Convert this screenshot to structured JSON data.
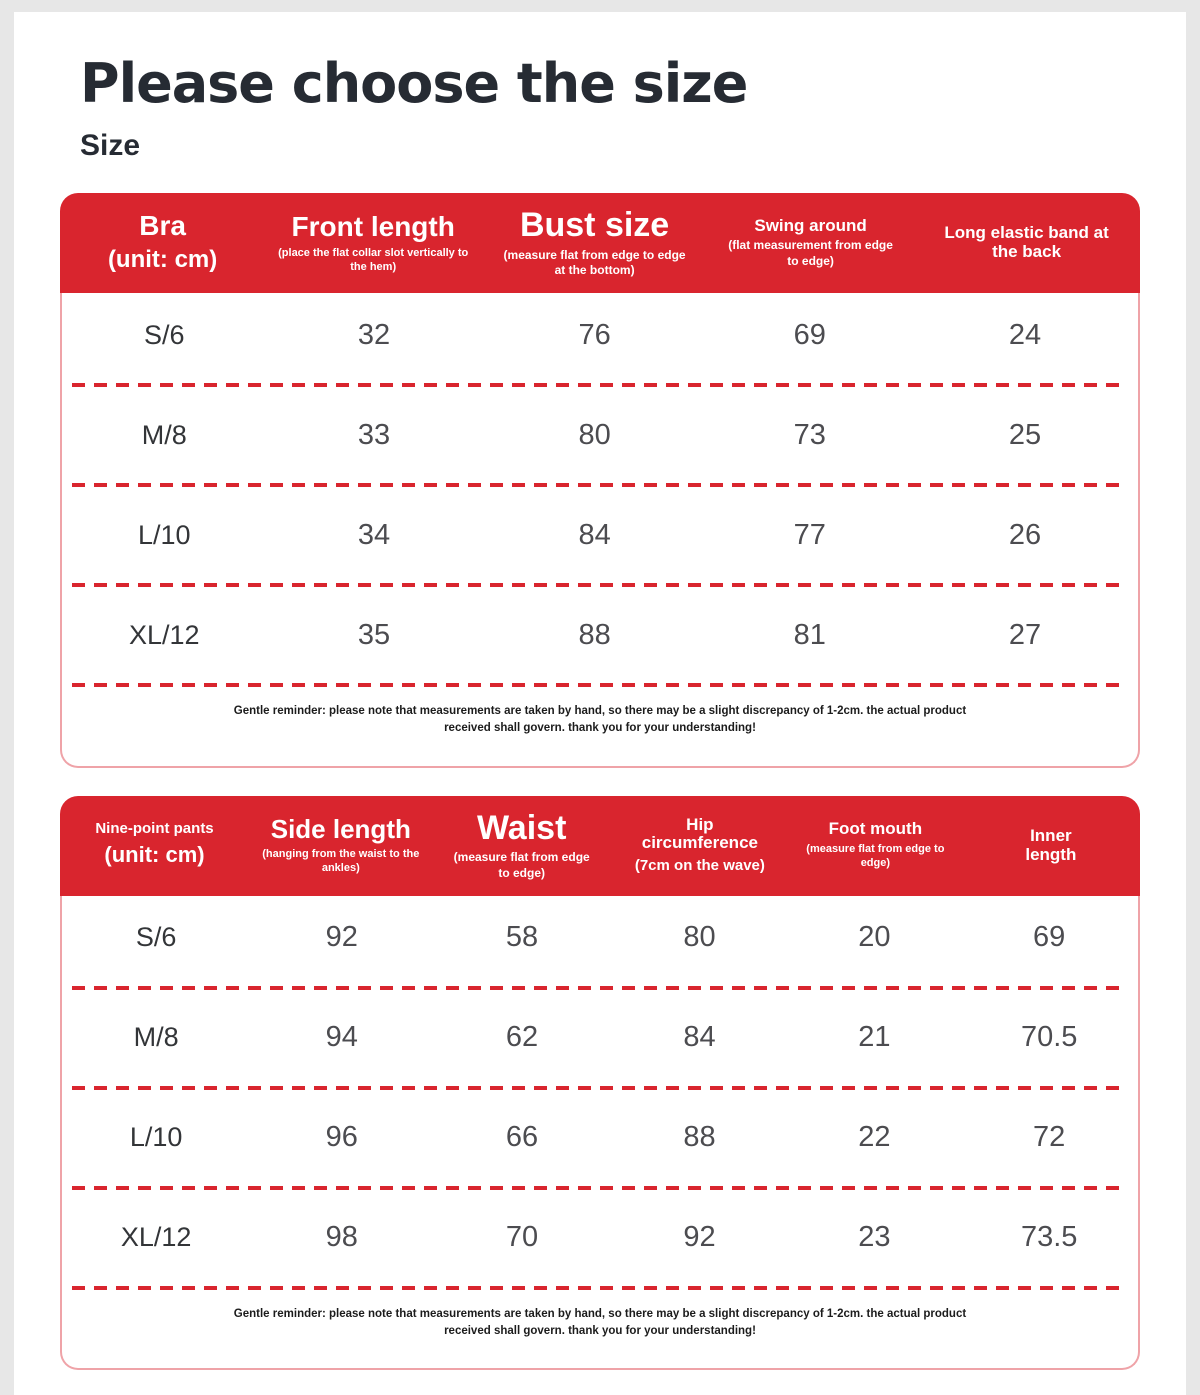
{
  "page": {
    "title": "Please choose the size",
    "subtitle": "Size"
  },
  "colors": {
    "accent_red": "#d9252e",
    "title_text": "#262b33",
    "number_text": "#4c4c50"
  },
  "note": "Gentle reminder: please note that measurements are taken by hand, so there may be a slight discrepancy of 1-2cm. the actual product received shall govern. thank you for your understanding!",
  "bra_table": {
    "columns": [
      {
        "title": "Bra",
        "sub": "(unit: cm)"
      },
      {
        "title": "Front length",
        "sub": "(place the flat collar slot vertically to the hem)"
      },
      {
        "title": "Bust size",
        "sub": "(measure flat from edge to edge at the bottom)"
      },
      {
        "title": "Swing around",
        "sub": "(flat measurement from edge to edge)"
      },
      {
        "title": "Long elastic band at the back",
        "sub": ""
      }
    ],
    "rows": [
      {
        "size": "S/6",
        "values": [
          "32",
          "76",
          "69",
          "24"
        ]
      },
      {
        "size": "M/8",
        "values": [
          "33",
          "80",
          "73",
          "25"
        ]
      },
      {
        "size": "L/10",
        "values": [
          "34",
          "84",
          "77",
          "26"
        ]
      },
      {
        "size": "XL/12",
        "values": [
          "35",
          "88",
          "81",
          "27"
        ]
      }
    ]
  },
  "pants_table": {
    "columns": [
      {
        "title": "Nine-point pants",
        "sub": "(unit: cm)"
      },
      {
        "title": "Side length",
        "sub": "(hanging from the waist to the ankles)"
      },
      {
        "title": "Waist",
        "sub": "(measure flat from edge to edge)"
      },
      {
        "title": "Hip circumference",
        "sub": "(7cm on the wave)"
      },
      {
        "title": "Foot mouth",
        "sub": "(measure flat from edge to edge)"
      },
      {
        "title": "Inner length",
        "sub": ""
      }
    ],
    "rows": [
      {
        "size": "S/6",
        "values": [
          "92",
          "58",
          "80",
          "20",
          "69"
        ]
      },
      {
        "size": "M/8",
        "values": [
          "94",
          "62",
          "84",
          "21",
          "70.5"
        ]
      },
      {
        "size": "L/10",
        "values": [
          "96",
          "66",
          "88",
          "22",
          "72"
        ]
      },
      {
        "size": "XL/12",
        "values": [
          "98",
          "70",
          "92",
          "23",
          "73.5"
        ]
      }
    ]
  }
}
